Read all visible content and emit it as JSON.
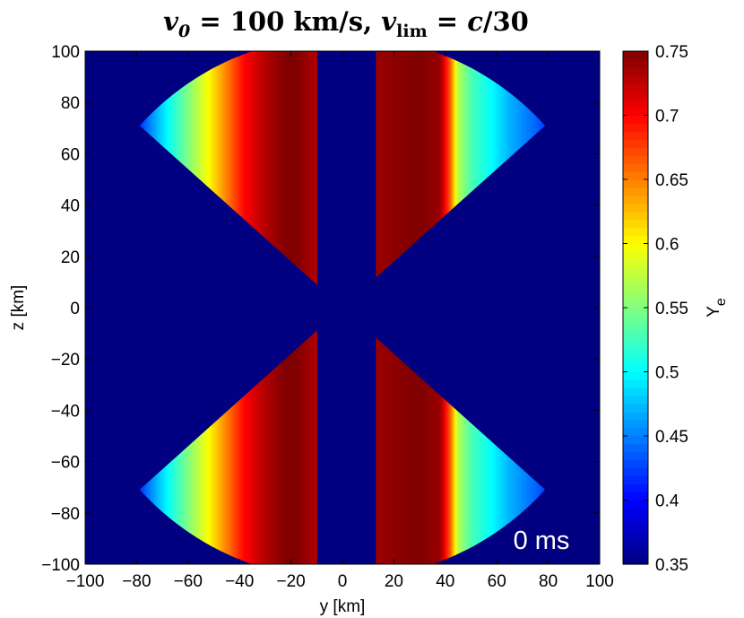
{
  "chart_data": {
    "type": "heatmap",
    "title": "v0 = 100 km/s, vlim = c/30",
    "xlabel": "y [km]",
    "ylabel": "z [km]",
    "xlim": [
      -100,
      100
    ],
    "ylim": [
      -100,
      100
    ],
    "xticks": [
      -100,
      -80,
      -60,
      -40,
      -20,
      0,
      20,
      40,
      60,
      80,
      100
    ],
    "yticks": [
      -100,
      -80,
      -60,
      -40,
      -20,
      0,
      20,
      40,
      60,
      80,
      100
    ],
    "xtick_labels": [
      "−100",
      "−80",
      "−60",
      "−40",
      "−20",
      "0",
      "20",
      "40",
      "60",
      "80",
      "100"
    ],
    "ytick_labels": [
      "−100",
      "−80",
      "−60",
      "−40",
      "−20",
      "0",
      "20",
      "40",
      "60",
      "80",
      "100"
    ],
    "colorbar": {
      "label": "Y",
      "label_subscript": "e",
      "range": [
        0.35,
        0.75
      ],
      "ticks": [
        0.35,
        0.4,
        0.45,
        0.5,
        0.55,
        0.6,
        0.65,
        0.7,
        0.75
      ],
      "tick_labels": [
        "0.35",
        "0.4",
        "0.45",
        "0.5",
        "0.55",
        "0.6",
        "0.65",
        "0.7",
        "0.75"
      ],
      "colormap": "jet"
    },
    "annotation": "0 ms",
    "background_value": 0.35,
    "cone_half_opening_deg": 48,
    "cone_outer_radius_km": 106,
    "left_cone": {
      "y_range_km": [
        -80,
        -10
      ],
      "value_profile_by_y_km": [
        [
          -80,
          0.41
        ],
        [
          -75,
          0.45
        ],
        [
          -68,
          0.5
        ],
        [
          -60,
          0.55
        ],
        [
          -52,
          0.6
        ],
        [
          -45,
          0.65
        ],
        [
          -38,
          0.7
        ],
        [
          -30,
          0.73
        ],
        [
          -22,
          0.75
        ],
        [
          -18,
          0.75
        ],
        [
          -10,
          0.73
        ]
      ]
    },
    "right_cone": {
      "y_range_km": [
        13,
        80
      ],
      "value_profile_by_y_km": [
        [
          13,
          0.74
        ],
        [
          30,
          0.75
        ],
        [
          38,
          0.74
        ],
        [
          42,
          0.66
        ],
        [
          45,
          0.57
        ],
        [
          50,
          0.53
        ],
        [
          58,
          0.5
        ],
        [
          65,
          0.47
        ],
        [
          75,
          0.44
        ],
        [
          80,
          0.42
        ]
      ]
    }
  }
}
